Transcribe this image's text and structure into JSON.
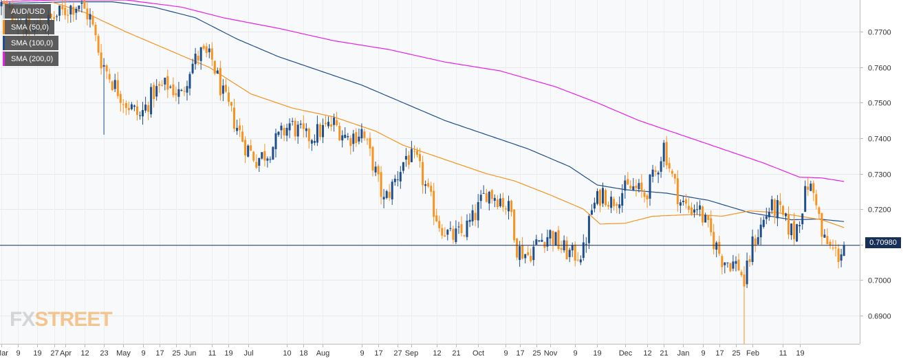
{
  "chart_data": {
    "type": "candlestick",
    "symbol": "AUD/USD",
    "current_price": "0.70980",
    "current_price_value": 0.7098,
    "ylim": [
      0.682,
      0.779
    ],
    "y_ticks": [
      "0.7700",
      "0.7600",
      "0.7500",
      "0.7400",
      "0.7300",
      "0.7200",
      "0.7100",
      "0.7000",
      "0.6900"
    ],
    "y_tick_values": [
      0.77,
      0.76,
      0.75,
      0.74,
      0.73,
      0.72,
      0.71,
      0.7,
      0.69
    ],
    "x_ticks": [
      "Mar",
      "9",
      "19",
      "27",
      "Apr",
      "12",
      "23",
      "May",
      "9",
      "17",
      "25",
      "Jun",
      "11",
      "19",
      "Jul",
      "10",
      "18",
      "Aug",
      "9",
      "17",
      "27",
      "Sep",
      "12",
      "21",
      "Oct",
      "9",
      "17",
      "25",
      "Nov",
      "9",
      "19",
      "Dec",
      "12",
      "21",
      "Jan",
      "9",
      "17",
      "25",
      "Feb",
      "11",
      "19"
    ],
    "x_tick_index": [
      0,
      6,
      13,
      19,
      23,
      30,
      37,
      44,
      51,
      57,
      63,
      68,
      76,
      82,
      89,
      103,
      109,
      116,
      130,
      136,
      143,
      148,
      157,
      164,
      172,
      182,
      187,
      193,
      198,
      207,
      215,
      225,
      233,
      239,
      246,
      253,
      259,
      265,
      271,
      282,
      288
    ],
    "grid": true,
    "legend_position": "top-left",
    "legend": [
      {
        "name": "SMA (50,0)",
        "color": "#f7931e"
      },
      {
        "name": "SMA (100,0)",
        "color": "#1f4e8c"
      },
      {
        "name": "SMA (200,0)",
        "color": "#e81fe8"
      }
    ],
    "candle_up_color": "#1f4e8c",
    "candle_down_color": "#f7931e",
    "close_anchors": [
      [
        0,
        0.7775
      ],
      [
        5,
        0.774
      ],
      [
        10,
        0.77
      ],
      [
        15,
        0.772
      ],
      [
        20,
        0.7745
      ],
      [
        25,
        0.777
      ],
      [
        28,
        0.778
      ],
      [
        32,
        0.774
      ],
      [
        36,
        0.762
      ],
      [
        40,
        0.756
      ],
      [
        45,
        0.75
      ],
      [
        50,
        0.746
      ],
      [
        55,
        0.753
      ],
      [
        60,
        0.755
      ],
      [
        65,
        0.752
      ],
      [
        68,
        0.76
      ],
      [
        72,
        0.764
      ],
      [
        76,
        0.762
      ],
      [
        80,
        0.752
      ],
      [
        84,
        0.745
      ],
      [
        88,
        0.738
      ],
      [
        92,
        0.734
      ],
      [
        96,
        0.736
      ],
      [
        100,
        0.74
      ],
      [
        104,
        0.744
      ],
      [
        110,
        0.74
      ],
      [
        115,
        0.742
      ],
      [
        120,
        0.744
      ],
      [
        125,
        0.74
      ],
      [
        130,
        0.742
      ],
      [
        134,
        0.733
      ],
      [
        138,
        0.722
      ],
      [
        142,
        0.728
      ],
      [
        146,
        0.735
      ],
      [
        150,
        0.733
      ],
      [
        154,
        0.724
      ],
      [
        158,
        0.716
      ],
      [
        162,
        0.712
      ],
      [
        166,
        0.713
      ],
      [
        170,
        0.717
      ],
      [
        175,
        0.725
      ],
      [
        180,
        0.723
      ],
      [
        184,
        0.719
      ],
      [
        186,
        0.709
      ],
      [
        190,
        0.707
      ],
      [
        194,
        0.711
      ],
      [
        198,
        0.713
      ],
      [
        202,
        0.709
      ],
      [
        206,
        0.707
      ],
      [
        210,
        0.708
      ],
      [
        213,
        0.72
      ],
      [
        217,
        0.725
      ],
      [
        220,
        0.722
      ],
      [
        224,
        0.725
      ],
      [
        228,
        0.726
      ],
      [
        232,
        0.724
      ],
      [
        236,
        0.73
      ],
      [
        239,
        0.738
      ],
      [
        242,
        0.729
      ],
      [
        245,
        0.722
      ],
      [
        248,
        0.72
      ],
      [
        251,
        0.721
      ],
      [
        254,
        0.716
      ],
      [
        257,
        0.711
      ],
      [
        260,
        0.706
      ],
      [
        263,
        0.705
      ],
      [
        266,
        0.704
      ],
      [
        268,
        0.699
      ],
      [
        271,
        0.71
      ],
      [
        274,
        0.715
      ],
      [
        277,
        0.72
      ],
      [
        280,
        0.72
      ],
      [
        283,
        0.716
      ],
      [
        286,
        0.713
      ],
      [
        288,
        0.718
      ],
      [
        291,
        0.727
      ],
      [
        294,
        0.723
      ],
      [
        296,
        0.712
      ],
      [
        299,
        0.709
      ],
      [
        302,
        0.707
      ],
      [
        304,
        0.7098
      ]
    ],
    "sma50_anchors": [
      [
        18,
        0.7785
      ],
      [
        30,
        0.7755
      ],
      [
        45,
        0.77
      ],
      [
        60,
        0.765
      ],
      [
        75,
        0.76
      ],
      [
        90,
        0.7525
      ],
      [
        105,
        0.7485
      ],
      [
        120,
        0.746
      ],
      [
        135,
        0.742
      ],
      [
        145,
        0.738
      ],
      [
        160,
        0.734
      ],
      [
        175,
        0.73
      ],
      [
        185,
        0.728
      ],
      [
        198,
        0.724
      ],
      [
        210,
        0.72
      ],
      [
        216,
        0.7158
      ],
      [
        225,
        0.716
      ],
      [
        235,
        0.718
      ],
      [
        250,
        0.7185
      ],
      [
        260,
        0.718
      ],
      [
        270,
        0.7195
      ],
      [
        280,
        0.719
      ],
      [
        288,
        0.718
      ],
      [
        296,
        0.717
      ],
      [
        304,
        0.7148
      ]
    ],
    "sma100_anchors": [
      [
        0,
        0.778
      ],
      [
        25,
        0.7785
      ],
      [
        40,
        0.7785
      ],
      [
        55,
        0.777
      ],
      [
        70,
        0.774
      ],
      [
        85,
        0.768
      ],
      [
        100,
        0.763
      ],
      [
        115,
        0.759
      ],
      [
        130,
        0.755
      ],
      [
        145,
        0.75
      ],
      [
        160,
        0.745
      ],
      [
        175,
        0.741
      ],
      [
        190,
        0.737
      ],
      [
        205,
        0.732
      ],
      [
        215,
        0.7268
      ],
      [
        225,
        0.7255
      ],
      [
        240,
        0.7245
      ],
      [
        255,
        0.7225
      ],
      [
        270,
        0.719
      ],
      [
        285,
        0.717
      ],
      [
        295,
        0.7172
      ],
      [
        304,
        0.7165
      ]
    ],
    "sma200_anchors": [
      [
        0,
        0.7785
      ],
      [
        20,
        0.779
      ],
      [
        45,
        0.779
      ],
      [
        65,
        0.777
      ],
      [
        80,
        0.774
      ],
      [
        100,
        0.771
      ],
      [
        120,
        0.7675
      ],
      [
        140,
        0.765
      ],
      [
        160,
        0.7615
      ],
      [
        180,
        0.759
      ],
      [
        200,
        0.7545
      ],
      [
        215,
        0.75
      ],
      [
        230,
        0.745
      ],
      [
        245,
        0.741
      ],
      [
        260,
        0.737
      ],
      [
        275,
        0.733
      ],
      [
        288,
        0.729
      ],
      [
        296,
        0.7288
      ],
      [
        304,
        0.7278
      ]
    ],
    "notable_wicks": [
      {
        "index": 268,
        "low": 0.682
      },
      {
        "index": 37,
        "low": 0.741
      },
      {
        "index": 239,
        "high": 0.7395
      }
    ]
  },
  "watermark": {
    "part1": "FX",
    "part2": "STREET"
  }
}
